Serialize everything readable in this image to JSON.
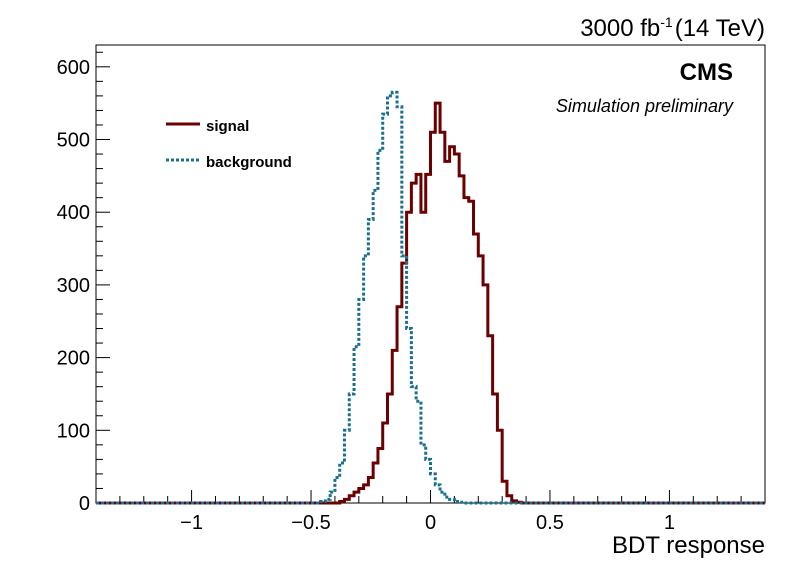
{
  "header": {
    "lumi_value": "3000 fb",
    "lumi_exponent": "-1",
    "energy": "(14 TeV)",
    "experiment": "CMS",
    "status": "Simulation preliminary"
  },
  "chart_data": {
    "type": "line",
    "subtype": "step-histogram",
    "title": "",
    "xlabel": "BDT response",
    "ylabel": "",
    "xlim": [
      -1.4,
      1.4
    ],
    "ylim": [
      0,
      630
    ],
    "bin_width": 0.02,
    "x_ticks": [
      -1,
      -0.5,
      0,
      0.5,
      1
    ],
    "x_tick_labels": [
      "−1",
      "−0.5",
      "0",
      "0.5",
      "1"
    ],
    "y_ticks": [
      0,
      100,
      200,
      300,
      400,
      500,
      600
    ],
    "y_tick_labels": [
      "0",
      "100",
      "200",
      "300",
      "400",
      "500",
      "600"
    ],
    "grid": false,
    "legend_position": "top-left",
    "bin_edges_start": -0.46,
    "series": [
      {
        "name": "signal",
        "color": "#6b0000",
        "style": "solid",
        "values": [
          0,
          0,
          0,
          0,
          2,
          5,
          10,
          15,
          20,
          25,
          35,
          55,
          75,
          110,
          150,
          210,
          270,
          330,
          400,
          440,
          452,
          400,
          452,
          510,
          550,
          510,
          470,
          490,
          480,
          450,
          420,
          415,
          370,
          340,
          300,
          230,
          150,
          100,
          30,
          10,
          3,
          1,
          0
        ]
      },
      {
        "name": "background",
        "color": "#1a7090",
        "style": "dotted",
        "values": [
          2,
          5,
          15,
          35,
          55,
          100,
          150,
          215,
          280,
          340,
          390,
          430,
          485,
          535,
          560,
          565,
          545,
          340,
          240,
          160,
          140,
          80,
          60,
          40,
          25,
          15,
          8,
          5,
          2,
          1,
          0,
          0,
          0,
          0,
          0,
          0,
          0,
          0,
          0,
          0,
          0,
          0,
          0
        ]
      }
    ]
  }
}
